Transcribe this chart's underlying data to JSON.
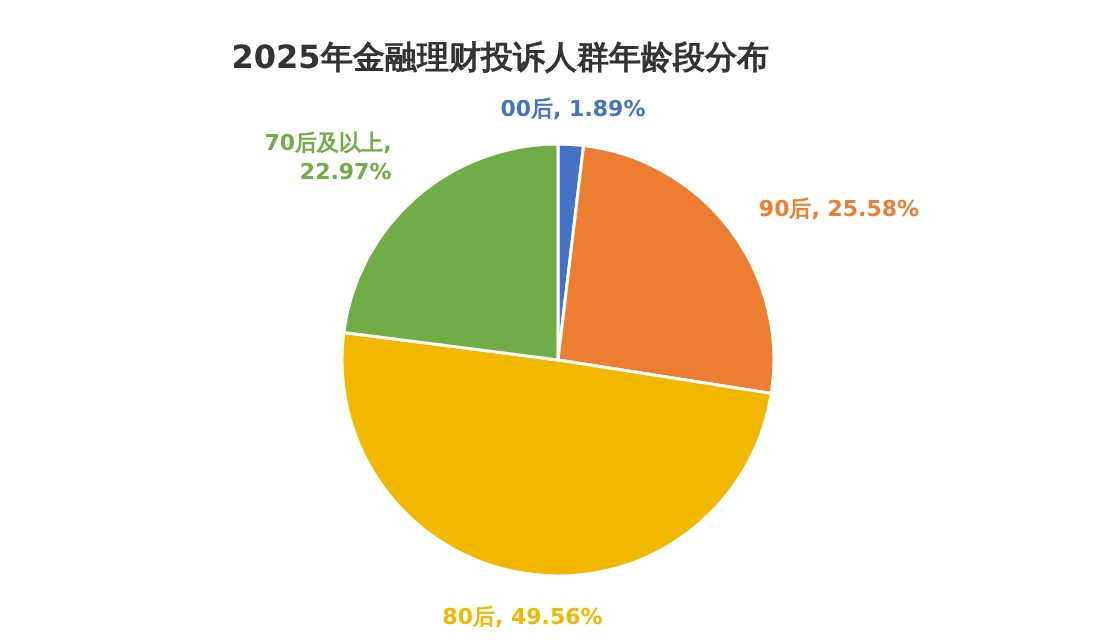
{
  "chart_data": {
    "type": "pie",
    "title": "2025年金融理财投诉人群年龄段分布",
    "categories": [
      "00后",
      "90后",
      "80后",
      "70后及以上"
    ],
    "values": [
      1.89,
      25.58,
      49.56,
      22.97
    ],
    "colors": [
      "#4472c4",
      "#ed7d31",
      "#f2b800",
      "#70ad47"
    ],
    "value_labels": [
      ", 1.89%",
      ", 25.58%",
      ", 49.56%",
      ", 22.97%"
    ]
  }
}
